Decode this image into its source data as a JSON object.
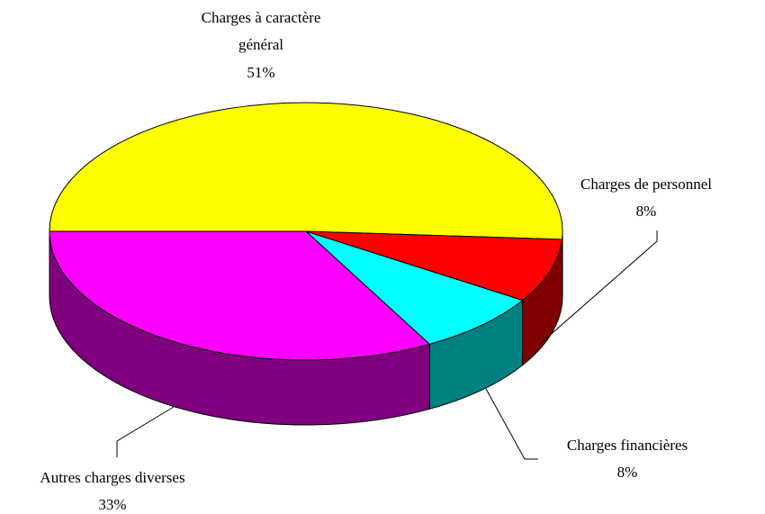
{
  "chart_data": {
    "type": "pie3d",
    "categories": [
      "Charges à caractère général",
      "Charges de personnel",
      "Charges financières",
      "Autres charges diverses"
    ],
    "values": [
      51,
      8,
      8,
      33
    ],
    "value_labels": [
      "51%",
      "8%",
      "8%",
      "33%"
    ],
    "colors": [
      "#ffff00",
      "#ff0000",
      "#00ffff",
      "#ff00ff"
    ]
  }
}
